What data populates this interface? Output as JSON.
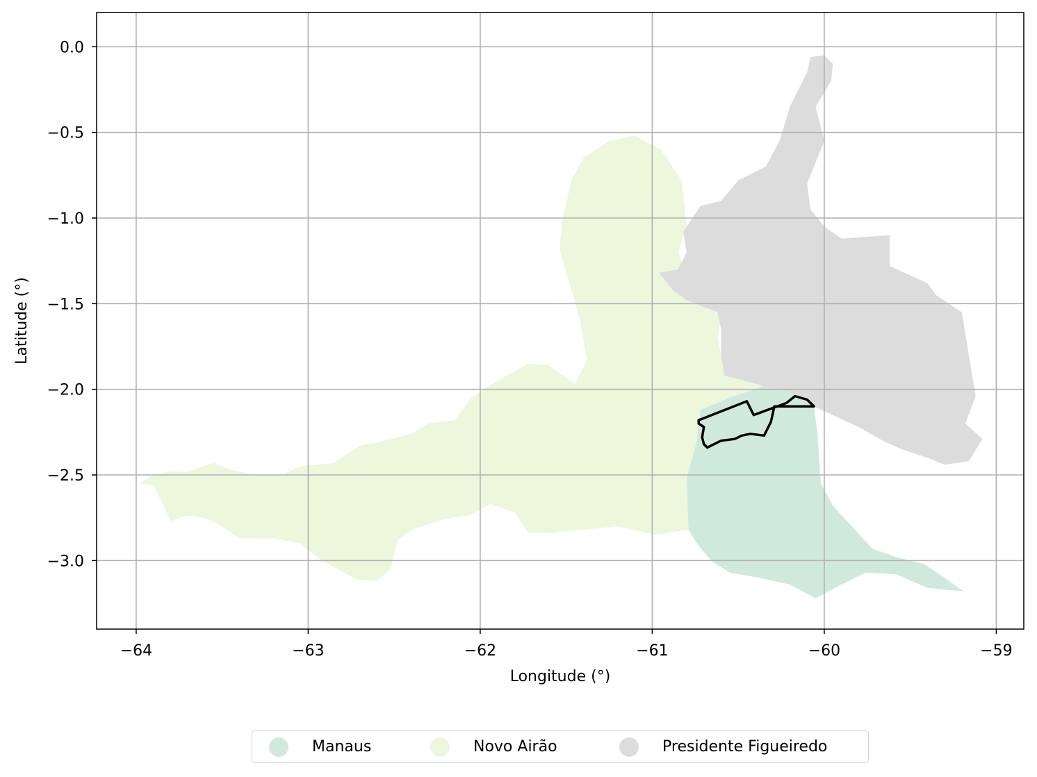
{
  "chart_data": {
    "type": "map",
    "xlabel": "Longitude (°)",
    "ylabel": "Latitude (°)",
    "xlim": [
      -64.23,
      -58.84
    ],
    "ylim": [
      -3.4,
      0.2
    ],
    "xticks": [
      -64,
      -63,
      -62,
      -61,
      -60,
      -59
    ],
    "xtick_labels": [
      "−64",
      "−63",
      "−62",
      "−61",
      "−60",
      "−59"
    ],
    "yticks": [
      0.0,
      -0.5,
      -1.0,
      -1.5,
      -2.0,
      -2.5,
      -3.0
    ],
    "ytick_labels": [
      "0.0",
      "−0.5",
      "−1.0",
      "−1.5",
      "−2.0",
      "−2.5",
      "−3.0"
    ],
    "grid": true,
    "legend_position": "bottom-center outside",
    "regions": [
      {
        "name": "Manaus",
        "color": "#cfeadd",
        "polygon": [
          [
            -60.8,
            -2.52
          ],
          [
            -60.74,
            -2.3
          ],
          [
            -60.72,
            -2.12
          ],
          [
            -60.62,
            -2.05
          ],
          [
            -60.45,
            -2.0
          ],
          [
            -60.3,
            -1.95
          ],
          [
            -60.18,
            -2.02
          ],
          [
            -60.06,
            -2.1
          ],
          [
            -60.04,
            -2.25
          ],
          [
            -60.03,
            -2.4
          ],
          [
            -60.02,
            -2.55
          ],
          [
            -59.95,
            -2.68
          ],
          [
            -59.84,
            -2.8
          ],
          [
            -59.72,
            -2.93
          ],
          [
            -59.58,
            -2.98
          ],
          [
            -59.42,
            -3.02
          ],
          [
            -59.3,
            -3.1
          ],
          [
            -59.19,
            -3.18
          ],
          [
            -59.4,
            -3.16
          ],
          [
            -59.58,
            -3.08
          ],
          [
            -59.76,
            -3.07
          ],
          [
            -59.92,
            -3.15
          ],
          [
            -60.05,
            -3.22
          ],
          [
            -60.2,
            -3.14
          ],
          [
            -60.38,
            -3.1
          ],
          [
            -60.55,
            -3.07
          ],
          [
            -60.66,
            -3.0
          ],
          [
            -60.74,
            -2.9
          ],
          [
            -60.79,
            -2.82
          ],
          [
            -60.8,
            -2.52
          ]
        ]
      },
      {
        "name": "Novo Airão",
        "color": "#ecf7dc",
        "polygon": [
          [
            -63.98,
            -2.55
          ],
          [
            -63.9,
            -2.5
          ],
          [
            -63.8,
            -2.48
          ],
          [
            -63.7,
            -2.48
          ],
          [
            -63.55,
            -2.43
          ],
          [
            -63.45,
            -2.47
          ],
          [
            -63.3,
            -2.5
          ],
          [
            -63.15,
            -2.5
          ],
          [
            -63.05,
            -2.45
          ],
          [
            -62.85,
            -2.43
          ],
          [
            -62.7,
            -2.33
          ],
          [
            -62.6,
            -2.31
          ],
          [
            -62.4,
            -2.26
          ],
          [
            -62.3,
            -2.2
          ],
          [
            -62.15,
            -2.18
          ],
          [
            -62.05,
            -2.05
          ],
          [
            -61.9,
            -1.95
          ],
          [
            -61.72,
            -1.85
          ],
          [
            -61.6,
            -1.86
          ],
          [
            -61.45,
            -1.97
          ],
          [
            -61.38,
            -1.83
          ],
          [
            -61.42,
            -1.6
          ],
          [
            -61.46,
            -1.45
          ],
          [
            -61.5,
            -1.32
          ],
          [
            -61.54,
            -1.18
          ],
          [
            -61.52,
            -1.0
          ],
          [
            -61.47,
            -0.78
          ],
          [
            -61.4,
            -0.65
          ],
          [
            -61.25,
            -0.55
          ],
          [
            -61.1,
            -0.52
          ],
          [
            -60.95,
            -0.6
          ],
          [
            -60.83,
            -0.78
          ],
          [
            -60.8,
            -1.05
          ],
          [
            -60.85,
            -1.2
          ],
          [
            -60.74,
            -1.48
          ],
          [
            -60.6,
            -1.57
          ],
          [
            -60.62,
            -1.7
          ],
          [
            -60.58,
            -1.9
          ],
          [
            -60.35,
            -1.98
          ],
          [
            -60.55,
            -2.05
          ],
          [
            -60.72,
            -2.12
          ],
          [
            -60.74,
            -2.3
          ],
          [
            -60.8,
            -2.52
          ],
          [
            -60.79,
            -2.82
          ],
          [
            -60.98,
            -2.85
          ],
          [
            -61.2,
            -2.8
          ],
          [
            -61.4,
            -2.82
          ],
          [
            -61.6,
            -2.84
          ],
          [
            -61.72,
            -2.84
          ],
          [
            -61.8,
            -2.72
          ],
          [
            -61.94,
            -2.67
          ],
          [
            -62.05,
            -2.73
          ],
          [
            -62.22,
            -2.76
          ],
          [
            -62.4,
            -2.82
          ],
          [
            -62.48,
            -2.88
          ],
          [
            -62.52,
            -3.05
          ],
          [
            -62.6,
            -3.12
          ],
          [
            -62.72,
            -3.11
          ],
          [
            -62.92,
            -3.0
          ],
          [
            -63.05,
            -2.9
          ],
          [
            -63.2,
            -2.87
          ],
          [
            -63.4,
            -2.87
          ],
          [
            -63.55,
            -2.77
          ],
          [
            -63.65,
            -2.74
          ],
          [
            -63.72,
            -2.74
          ],
          [
            -63.8,
            -2.77
          ],
          [
            -63.85,
            -2.66
          ],
          [
            -63.9,
            -2.56
          ],
          [
            -63.98,
            -2.55
          ]
        ]
      },
      {
        "name": "Presidente Figueiredo",
        "color": "#dcdcdc",
        "polygon": [
          [
            -60.82,
            -1.08
          ],
          [
            -60.8,
            -1.2
          ],
          [
            -60.85,
            -1.3
          ],
          [
            -60.96,
            -1.32
          ],
          [
            -60.88,
            -1.42
          ],
          [
            -60.8,
            -1.48
          ],
          [
            -60.62,
            -1.55
          ],
          [
            -60.6,
            -1.65
          ],
          [
            -60.6,
            -1.8
          ],
          [
            -60.58,
            -1.92
          ],
          [
            -60.35,
            -1.98
          ],
          [
            -60.18,
            -2.02
          ],
          [
            -60.06,
            -2.1
          ],
          [
            -59.95,
            -2.15
          ],
          [
            -59.8,
            -2.22
          ],
          [
            -59.66,
            -2.3
          ],
          [
            -59.55,
            -2.35
          ],
          [
            -59.4,
            -2.4
          ],
          [
            -59.3,
            -2.44
          ],
          [
            -59.16,
            -2.42
          ],
          [
            -59.08,
            -2.29
          ],
          [
            -59.18,
            -2.2
          ],
          [
            -59.12,
            -2.04
          ],
          [
            -59.16,
            -1.8
          ],
          [
            -59.2,
            -1.55
          ],
          [
            -59.35,
            -1.45
          ],
          [
            -59.4,
            -1.38
          ],
          [
            -59.62,
            -1.28
          ],
          [
            -59.62,
            -1.1
          ],
          [
            -59.9,
            -1.12
          ],
          [
            -60.0,
            -1.05
          ],
          [
            -60.08,
            -0.95
          ],
          [
            -60.1,
            -0.8
          ],
          [
            -60.0,
            -0.55
          ],
          [
            -60.05,
            -0.35
          ],
          [
            -59.96,
            -0.2
          ],
          [
            -59.95,
            -0.1
          ],
          [
            -60.0,
            -0.05
          ],
          [
            -60.08,
            -0.06
          ],
          [
            -60.1,
            -0.15
          ],
          [
            -60.2,
            -0.35
          ],
          [
            -60.26,
            -0.55
          ],
          [
            -60.34,
            -0.7
          ],
          [
            -60.5,
            -0.78
          ],
          [
            -60.6,
            -0.9
          ],
          [
            -60.72,
            -0.93
          ],
          [
            -60.82,
            -1.08
          ]
        ]
      },
      {
        "name": "Study area outline",
        "color": "#000000",
        "outline": [
          [
            -60.73,
            -2.18
          ],
          [
            -60.45,
            -2.07
          ],
          [
            -60.41,
            -2.15
          ],
          [
            -60.22,
            -2.08
          ],
          [
            -60.17,
            -2.04
          ],
          [
            -60.1,
            -2.06
          ],
          [
            -60.06,
            -2.1
          ],
          [
            -60.15,
            -2.1
          ],
          [
            -60.29,
            -2.1
          ],
          [
            -60.31,
            -2.19
          ],
          [
            -60.35,
            -2.27
          ],
          [
            -60.43,
            -2.26
          ],
          [
            -60.48,
            -2.27
          ],
          [
            -60.52,
            -2.29
          ],
          [
            -60.6,
            -2.3
          ],
          [
            -60.68,
            -2.34
          ],
          [
            -60.7,
            -2.32
          ],
          [
            -60.71,
            -2.28
          ],
          [
            -60.7,
            -2.22
          ],
          [
            -60.73,
            -2.2
          ],
          [
            -60.73,
            -2.18
          ]
        ]
      }
    ],
    "legend": [
      {
        "label": "Manaus",
        "color": "#cfeadd"
      },
      {
        "label": "Novo Airão",
        "color": "#ecf7dc"
      },
      {
        "label": "Presidente Figueiredo",
        "color": "#dcdcdc"
      }
    ]
  }
}
